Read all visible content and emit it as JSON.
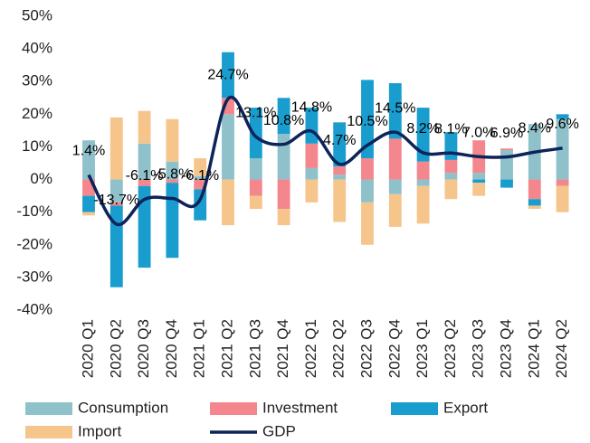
{
  "chart_data": {
    "type": "stacked-bar-line",
    "categories": [
      "2020 Q1",
      "2020 Q2",
      "2020 Q3",
      "2020 Q4",
      "2021 Q1",
      "2021 Q2",
      "2021 Q3",
      "2021 Q4",
      "2022 Q1",
      "2022 Q2",
      "2022 Q3",
      "2022 Q4",
      "2023 Q1",
      "2023 Q2",
      "2023 Q3",
      "2023 Q4",
      "2024 Q1",
      "2024 Q2"
    ],
    "series": [
      {
        "name": "Consumption",
        "color": "#8fc1cb",
        "values": [
          12,
          -7,
          11,
          5.5,
          1,
          20,
          6.5,
          14,
          3.5,
          1.5,
          -7,
          -4.5,
          -2,
          2,
          2,
          9,
          17,
          18.5
        ]
      },
      {
        "name": "Investment",
        "color": "#f4878e",
        "values": [
          -5,
          -1,
          -2,
          -1,
          -3,
          5,
          -5,
          -9,
          7.5,
          2.5,
          6.5,
          12.5,
          5.5,
          4,
          10,
          0.5,
          -6,
          -2
        ]
      },
      {
        "name": "Export",
        "color": "#199dcf",
        "values": [
          -5,
          -25,
          -25,
          -23,
          -9.5,
          14,
          15.5,
          11,
          11,
          13.5,
          24,
          17,
          16.5,
          8.5,
          -1,
          -2.5,
          -2,
          1.5
        ]
      },
      {
        "name": "Import",
        "color": "#f5c58c",
        "values": [
          -1,
          19,
          10,
          13,
          5.5,
          -14,
          -4,
          -5,
          -7,
          -13,
          -13,
          -10,
          -11.5,
          -6,
          -4,
          0,
          -1,
          -8
        ]
      },
      {
        "name": "GDP",
        "color": "#0d2359",
        "kind": "line",
        "values": [
          1.4,
          -13.7,
          -6.1,
          -5.8,
          -6.1,
          24.7,
          13.1,
          10.8,
          14.8,
          4.7,
          10.5,
          14.5,
          8.2,
          8.1,
          7.0,
          6.9,
          8.4,
          9.6
        ],
        "value_labels": [
          "1.4%",
          "-13.7%",
          "-6.1%",
          "-5.8%",
          "-6.1%",
          "24.7%",
          "13.1%",
          "10.8%",
          "14.8%",
          "4.7%",
          "10.5%",
          "14.5%",
          "8.2%",
          "8.1%",
          "7.0%",
          "6.9%",
          "8.4%",
          "9.6%"
        ]
      }
    ],
    "ylim": [
      -40,
      50
    ],
    "yticks": [
      {
        "value": -40,
        "label": "-40%"
      },
      {
        "value": -30,
        "label": "-30%"
      },
      {
        "value": -20,
        "label": "-20%"
      },
      {
        "value": -10,
        "label": "-10%"
      },
      {
        "value": 0,
        "label": "0%"
      },
      {
        "value": 10,
        "label": "10%"
      },
      {
        "value": 20,
        "label": "20%"
      },
      {
        "value": 30,
        "label": "30%"
      },
      {
        "value": 40,
        "label": "40%"
      },
      {
        "value": 50,
        "label": "50%"
      }
    ],
    "legend": "bottom"
  }
}
